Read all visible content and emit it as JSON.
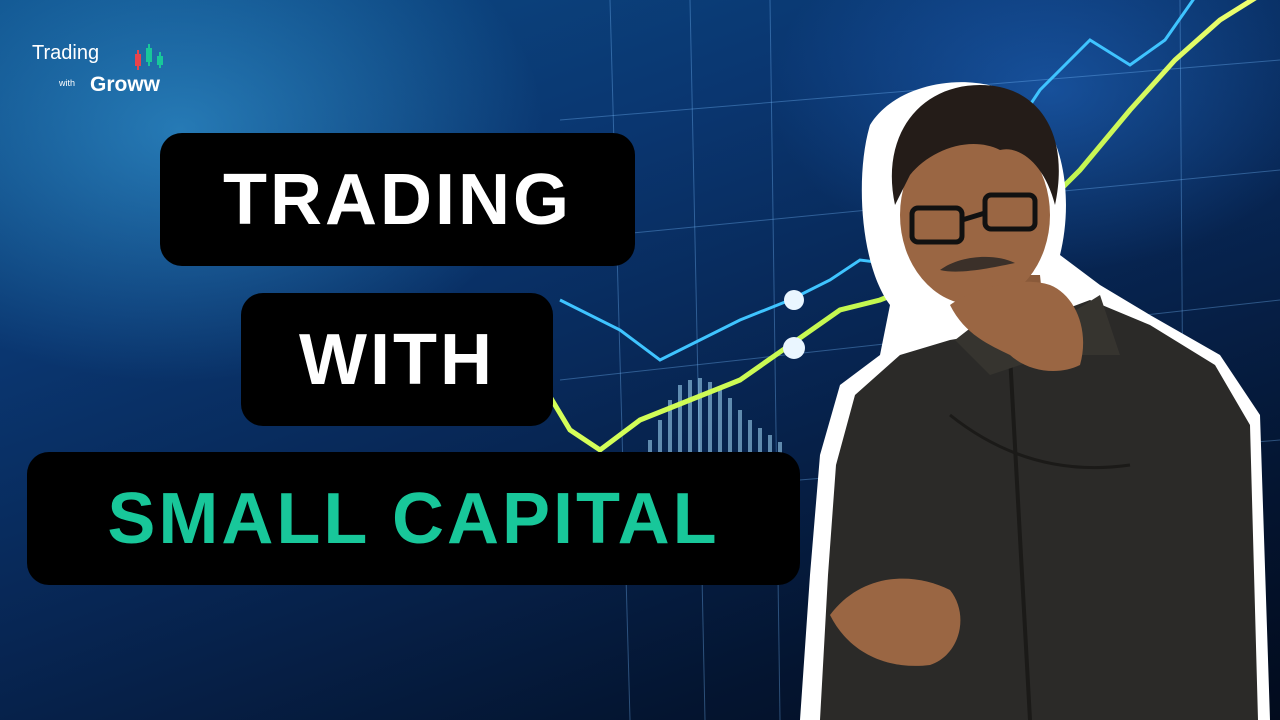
{
  "brand": {
    "line1": "Trading",
    "with": "with",
    "name": "Groww",
    "icon": "candlestick-icon",
    "candle_colors": [
      "#e8434b",
      "#18c79a"
    ]
  },
  "title": {
    "line1": "TRADING",
    "line2": "WITH",
    "line3": "SMALL CAPITAL"
  },
  "colors": {
    "accent_green": "#18c79a",
    "box_bg": "#000000",
    "text_white": "#ffffff"
  },
  "presenter": {
    "icon": "presenter-photo"
  }
}
